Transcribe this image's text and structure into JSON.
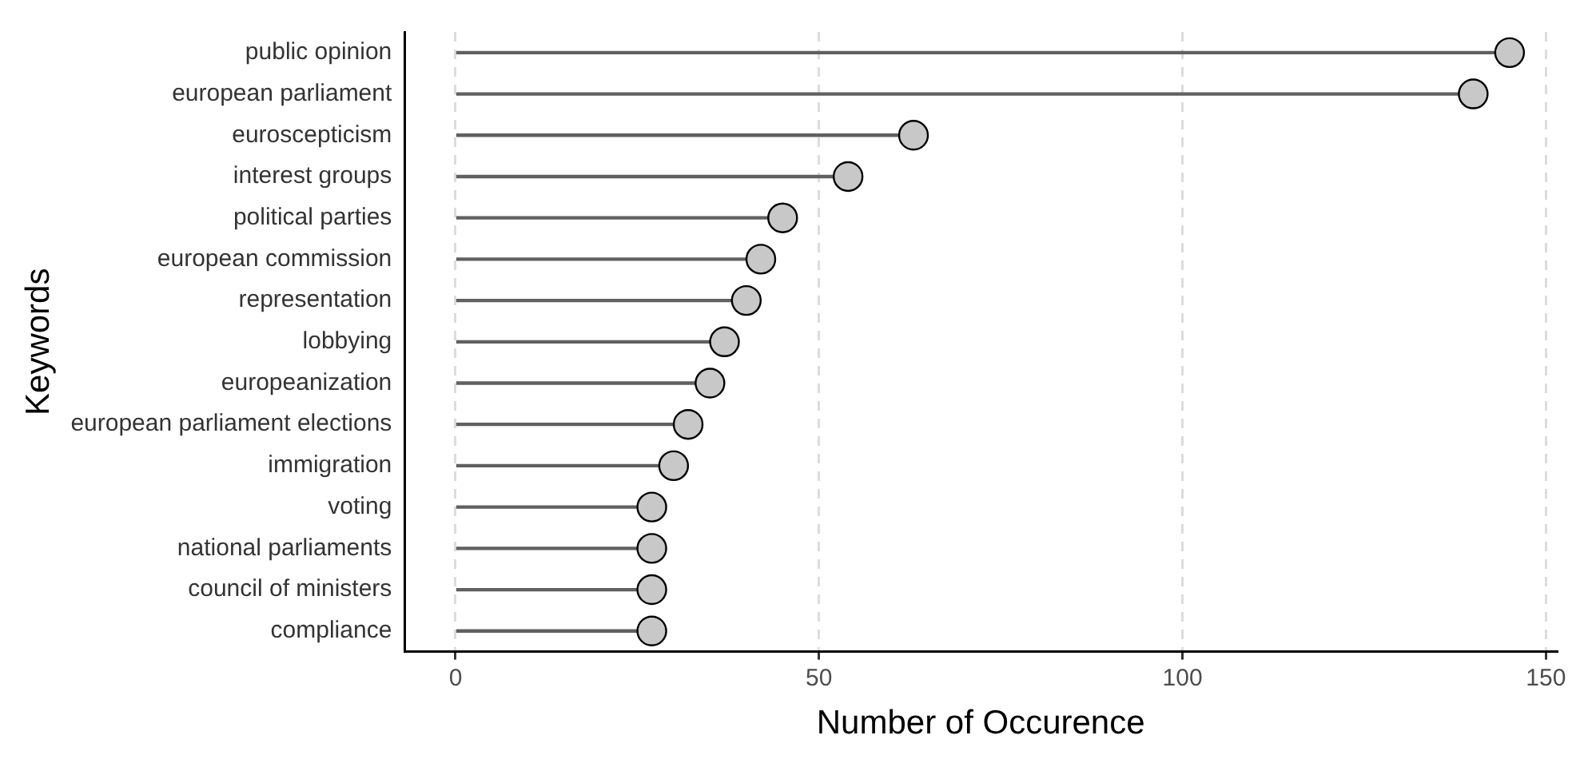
{
  "chart_data": {
    "type": "lollipop",
    "orientation": "horizontal",
    "xlabel": "Number of Occurence",
    "ylabel": "Keywords",
    "categories": [
      "public opinion",
      "european parliament",
      "euroscepticism",
      "interest groups",
      "political parties",
      "european commission",
      "representation",
      "lobbying",
      "europeanization",
      "european parliament elections",
      "immigration",
      "voting",
      "national parliaments",
      "council of ministers",
      "compliance"
    ],
    "values": [
      145,
      140,
      63,
      54,
      45,
      42,
      40,
      37,
      35,
      32,
      30,
      27,
      27,
      27,
      27
    ],
    "color": "#c8c8c8",
    "xlim": [
      -7,
      151.5
    ],
    "xticks": [
      0,
      50,
      100,
      150
    ],
    "grid": "x",
    "marker": "circle",
    "legend": false
  }
}
